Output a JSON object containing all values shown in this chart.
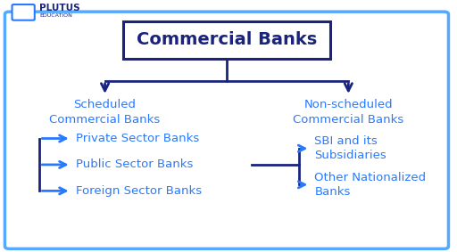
{
  "bg_color": "#ffffff",
  "border_color": "#55aaff",
  "dark_blue": "#1a237e",
  "light_blue": "#2979ff",
  "title": "Commercial Banks",
  "node_l1_left": "Scheduled\nCommercial Banks",
  "node_l1_right": "Non-scheduled\nCommercial Banks",
  "node_l2_left_1": "Private Sector Banks",
  "node_l2_left_2": "Public Sector Banks",
  "node_l2_left_3": "Foreign Sector Banks",
  "node_l2_right_1": "SBI and its\nSubsidiaries",
  "node_l2_right_2": "Other Nationalized\nBanks",
  "logo_text_top": "PLUTUS",
  "logo_text_bottom": "EDUCATION"
}
